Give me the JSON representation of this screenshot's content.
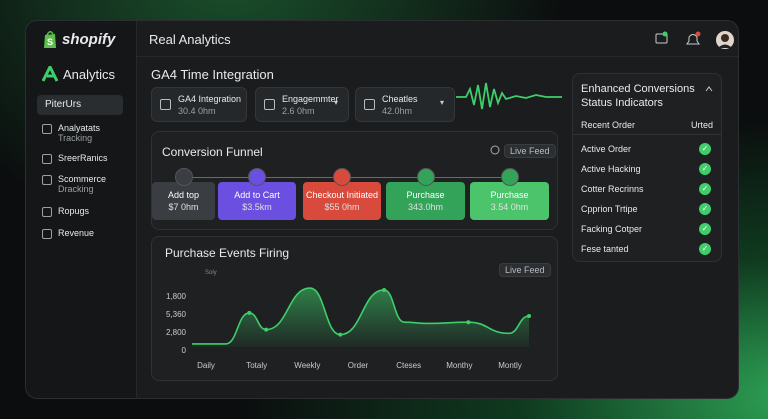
{
  "sidebar": {
    "logo": "shopify",
    "section": "Analytics",
    "selected": "PiterUrs",
    "items": [
      {
        "label": "Analyatats",
        "sub": "Tracking"
      },
      {
        "label": "SreerRanics"
      },
      {
        "label": "Scommerce",
        "sub": "Dracking"
      },
      {
        "label": "Ropugs"
      },
      {
        "label": "Revenue"
      }
    ]
  },
  "header": {
    "title": "Real Analytics"
  },
  "integration": {
    "title": "GA4 Time Integration",
    "cards": [
      {
        "label": "GA4 Integration",
        "value": "30.4 0hm"
      },
      {
        "label": "Engagemmter",
        "value": "2.6 0hm"
      },
      {
        "label": "Cheatles",
        "value": "42.0hm"
      }
    ]
  },
  "funnel": {
    "title": "Conversion Funnel",
    "badge": "Live Feed",
    "steps": [
      {
        "label": "Add top",
        "value": "$7 0hm",
        "color": "#3a3d42",
        "dot": "#3a3d42"
      },
      {
        "label": "Add to Cart",
        "value": "$3.5km",
        "color": "#6b4fe0",
        "dot": "#6b4fe0"
      },
      {
        "label": "Checkout Initiated",
        "value": "$55 0hm",
        "color": "#d84a3c",
        "dot": "#d84a3c"
      },
      {
        "label": "Purchase",
        "value": "343.0hm",
        "color": "#34a35a",
        "dot": "#34a35a"
      },
      {
        "label": "Purchase",
        "value": "3.54 0hm",
        "color": "#4bc46c",
        "dot": "#34a35a"
      }
    ]
  },
  "chart_data": {
    "type": "line",
    "title": "Purchase Events Firing",
    "subtitle": "Soly",
    "badge": "Live Feed",
    "y_labels": [
      "1,800",
      "5,360",
      "2,800",
      "0"
    ],
    "categories": [
      "Daily",
      "Totaly",
      "Weekly",
      "Order",
      "Cteses",
      "Monthy",
      "Montly"
    ],
    "x": [
      0,
      10,
      17,
      22,
      35,
      44,
      57,
      63,
      70,
      82,
      94,
      100
    ],
    "values": [
      5,
      5,
      55,
      28,
      95,
      20,
      92,
      40,
      38,
      40,
      22,
      50
    ],
    "xlim": [
      0,
      100
    ],
    "ylim": [
      0,
      100
    ],
    "color": "#3ecf6a"
  },
  "status": {
    "title": "Enhanced Conversions Status Indicators",
    "col1": "Recent Order",
    "col2": "Urted",
    "rows": [
      "Active Order",
      "Active Hacking",
      "Cotter Recrinns",
      "Cpprion Trtipe",
      "Facking Cotper",
      "Fese tanted"
    ]
  }
}
